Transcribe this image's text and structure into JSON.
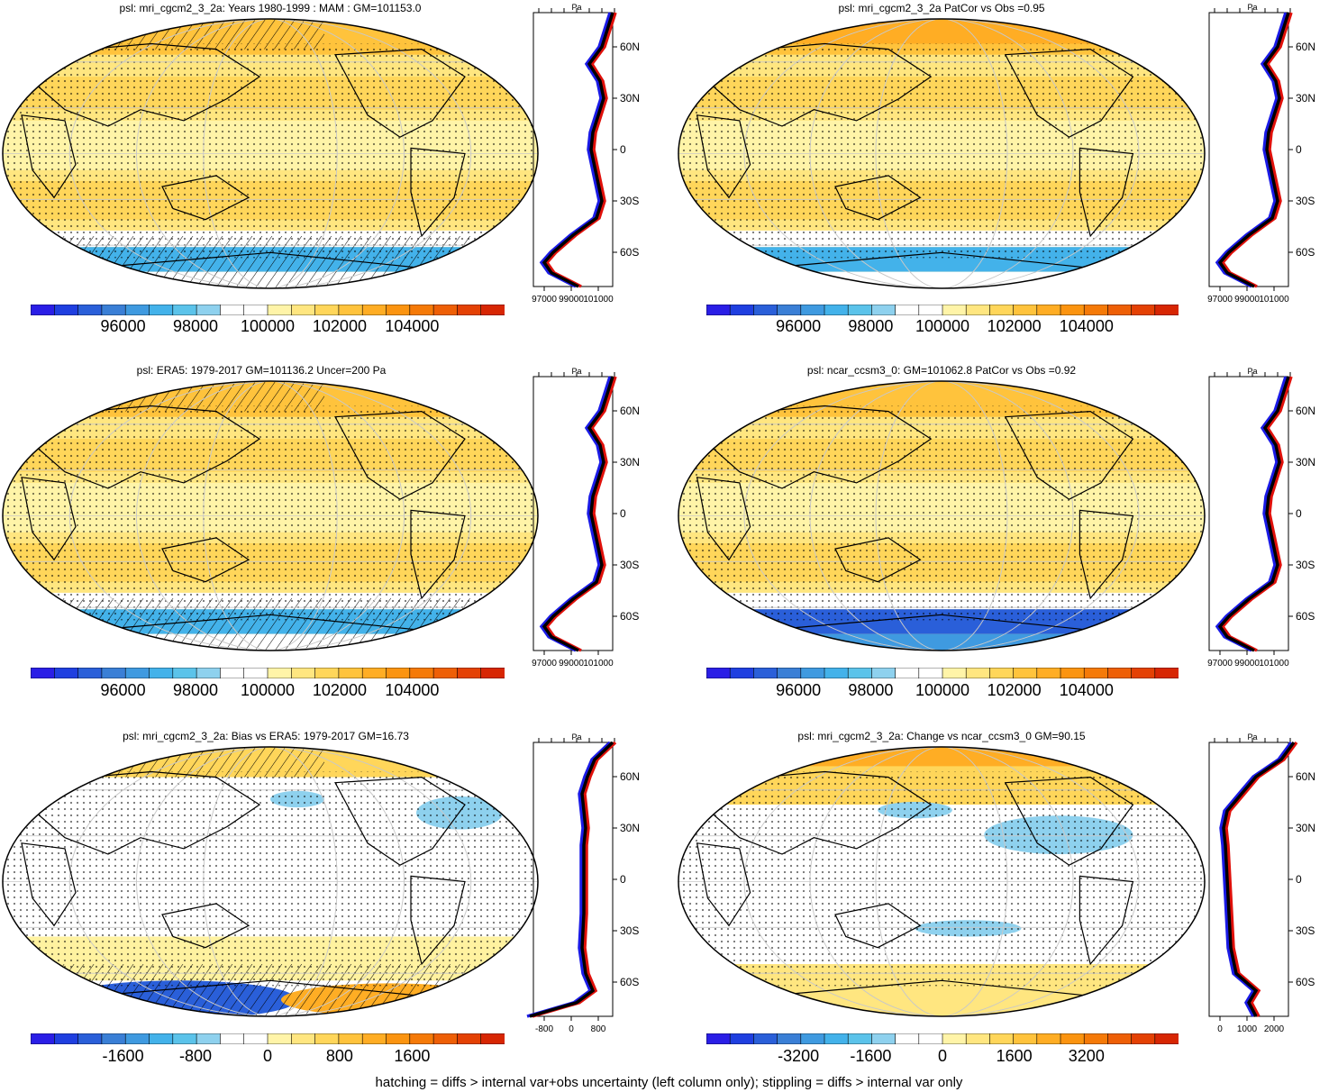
{
  "footer_note": "hatching = diffs > internal var+obs uncertainty (left column only); stippling = diffs > internal var only",
  "panels": [
    {
      "id": "p1",
      "title": "psl: mri_cgcm2_3_2a: Years 1980-1999 : MAM : GM=101153.0",
      "colorbar": {
        "labels": [
          "96000",
          "98000",
          "100000",
          "102000",
          "104000"
        ]
      },
      "profile": {
        "unit": "Pa",
        "xticks": [
          "97000",
          "99000",
          "101000"
        ],
        "lat_labels": [
          "60N",
          "30N",
          "0",
          "30S",
          "60S"
        ]
      }
    },
    {
      "id": "p2",
      "title": "psl: mri_cgcm2_3_2a PatCor vs Obs =0.95",
      "colorbar": {
        "labels": [
          "96000",
          "98000",
          "100000",
          "102000",
          "104000"
        ]
      },
      "profile": {
        "unit": "Pa",
        "xticks": [
          "97000",
          "99000",
          "101000"
        ],
        "lat_labels": [
          "60N",
          "30N",
          "0",
          "30S",
          "60S"
        ]
      }
    },
    {
      "id": "p3",
      "title": "psl: ERA5: 1979-2017 GM=101136.2 Uncer=200 Pa",
      "colorbar": {
        "labels": [
          "96000",
          "98000",
          "100000",
          "102000",
          "104000"
        ]
      },
      "profile": {
        "unit": "Pa",
        "xticks": [
          "97000",
          "99000",
          "101000"
        ],
        "lat_labels": [
          "60N",
          "30N",
          "0",
          "30S",
          "60S"
        ]
      }
    },
    {
      "id": "p4",
      "title": "psl: ncar_ccsm3_0: GM=101062.8 PatCor vs Obs =0.92",
      "colorbar": {
        "labels": [
          "96000",
          "98000",
          "100000",
          "102000",
          "104000"
        ]
      },
      "profile": {
        "unit": "Pa",
        "xticks": [
          "97000",
          "99000",
          "101000"
        ],
        "lat_labels": [
          "60N",
          "30N",
          "0",
          "30S",
          "60S"
        ]
      }
    },
    {
      "id": "p5",
      "title": "psl: mri_cgcm2_3_2a: Bias vs ERA5: 1979-2017 GM=16.73",
      "colorbar": {
        "labels": [
          "-1600",
          "-800",
          "0",
          "800",
          "1600"
        ]
      },
      "profile": {
        "unit": "Pa",
        "xticks": [
          "-800",
          "0",
          "800"
        ],
        "lat_labels": [
          "60N",
          "30N",
          "0",
          "30S",
          "60S"
        ]
      }
    },
    {
      "id": "p6",
      "title": "psl: mri_cgcm2_3_2a: Change vs ncar_ccsm3_0 GM=90.15",
      "colorbar": {
        "labels": [
          "-3200",
          "-1600",
          "0",
          "1600",
          "3200"
        ]
      },
      "profile": {
        "unit": "Pa",
        "xticks": [
          "0",
          "1000",
          "2000"
        ],
        "lat_labels": [
          "60N",
          "30N",
          "0",
          "30S",
          "60S"
        ]
      }
    }
  ],
  "colors": {
    "scale": [
      "#2a1ee6",
      "#1f3fe0",
      "#2a5fd9",
      "#3a7fd6",
      "#3f9ae0",
      "#43b2ea",
      "#5bc3ea",
      "#8ed1ee",
      "#ffffff",
      "#ffffff",
      "#fff4a8",
      "#ffe680",
      "#ffd65a",
      "#ffc33c",
      "#ffad24",
      "#fb9410",
      "#f57a08",
      "#ee5f06",
      "#e44104",
      "#d72603"
    ],
    "model_line": "#e0100a",
    "obs_line": "#1a1ae6",
    "ref_line": "#000000",
    "coast": "#000000",
    "grid": "#c8c8c8"
  }
}
